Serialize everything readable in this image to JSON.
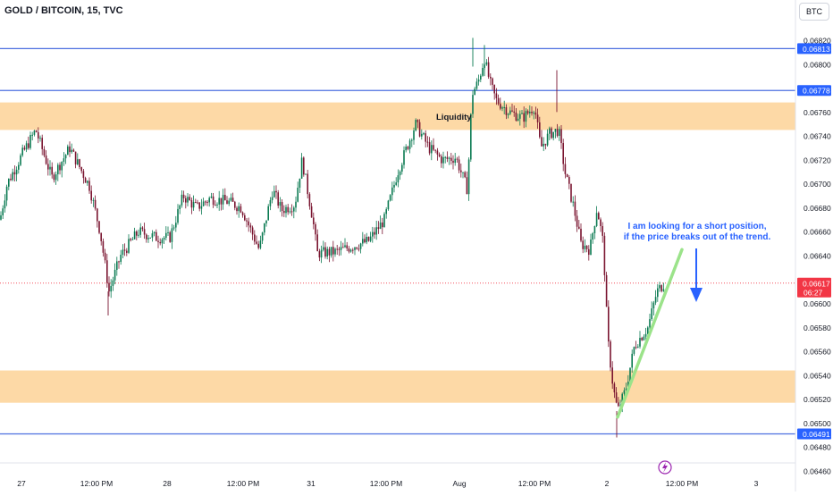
{
  "chart_data": {
    "type": "candlestick",
    "title": "GOLD / BITCOIN, 15, TVC",
    "currency": "BTC",
    "ylim": [
      0.06455,
      0.06848
    ],
    "x_ticks": [
      "27",
      "12:00 PM",
      "28",
      "12:00 PM",
      "31",
      "12:00 PM",
      "Aug",
      "12:00 PM",
      "2",
      "12:00 PM",
      "3"
    ],
    "y_ticks": [
      "0.06820",
      "0.06800",
      "0.06760",
      "0.06740",
      "0.06720",
      "0.06700",
      "0.06680",
      "0.06660",
      "0.06640",
      "0.06600",
      "0.06580",
      "0.06560",
      "0.06540",
      "0.06520",
      "0.06500",
      "0.06480",
      "0.06460"
    ],
    "current_price": {
      "value": "0.06617",
      "countdown": "06:27"
    },
    "horizontal_levels": [
      {
        "value": 0.06813,
        "label": "0.06813",
        "color": "#4c6fe0"
      },
      {
        "value": 0.06778,
        "label": "0.06778",
        "color": "#4c6fe0"
      },
      {
        "value": 0.06491,
        "label": "0.06491",
        "color": "#4c6fe0"
      }
    ],
    "zones": [
      {
        "name": "liquidity-zone",
        "top": 0.06768,
        "bottom": 0.06745,
        "color": "#fdd9a6"
      },
      {
        "name": "support-zone",
        "top": 0.06544,
        "bottom": 0.06517,
        "color": "#fdd9a6"
      }
    ],
    "anchors": [
      [
        0,
        0.0667
      ],
      [
        8,
        0.067
      ],
      [
        25,
        0.06725
      ],
      [
        40,
        0.06745
      ],
      [
        58,
        0.06705
      ],
      [
        78,
        0.0673
      ],
      [
        100,
        0.06698
      ],
      [
        112,
        0.0666
      ],
      [
        122,
        0.0661
      ],
      [
        135,
        0.0664
      ],
      [
        155,
        0.0666
      ],
      [
        175,
        0.06655
      ],
      [
        190,
        0.06655
      ],
      [
        205,
        0.0669
      ],
      [
        220,
        0.0668
      ],
      [
        235,
        0.06688
      ],
      [
        255,
        0.06685
      ],
      [
        270,
        0.0668
      ],
      [
        290,
        0.06645
      ],
      [
        305,
        0.06695
      ],
      [
        315,
        0.06678
      ],
      [
        330,
        0.06683
      ],
      [
        338,
        0.0672
      ],
      [
        350,
        0.0667
      ],
      [
        355,
        0.06642
      ],
      [
        375,
        0.06643
      ],
      [
        395,
        0.06648
      ],
      [
        412,
        0.06652
      ],
      [
        430,
        0.0667
      ],
      [
        445,
        0.0671
      ],
      [
        465,
        0.0675
      ],
      [
        480,
        0.0673
      ],
      [
        495,
        0.0672
      ],
      [
        510,
        0.06722
      ],
      [
        523,
        0.06695
      ],
      [
        528,
        0.06775
      ],
      [
        535,
        0.06785
      ],
      [
        542,
        0.06805
      ],
      [
        548,
        0.06785
      ],
      [
        555,
        0.0677
      ],
      [
        570,
        0.0676
      ],
      [
        585,
        0.06755
      ],
      [
        598,
        0.06765
      ],
      [
        605,
        0.0673
      ],
      [
        615,
        0.06742
      ],
      [
        625,
        0.06745
      ],
      [
        632,
        0.0671
      ],
      [
        642,
        0.0668
      ],
      [
        650,
        0.0665
      ],
      [
        660,
        0.06645
      ],
      [
        668,
        0.0668
      ],
      [
        675,
        0.0665
      ],
      [
        680,
        0.0657
      ],
      [
        686,
        0.0653
      ],
      [
        691,
        0.0651
      ],
      [
        700,
        0.06528
      ],
      [
        710,
        0.06565
      ],
      [
        725,
        0.0658
      ],
      [
        735,
        0.0661
      ],
      [
        743,
        0.06617
      ]
    ]
  },
  "annotations": {
    "liquidity_label": "Liquidity",
    "note_line1": "I am looking for a short position,",
    "note_line2": "if the price breaks out of the trend."
  },
  "colors": {
    "up": "#0b7a52",
    "down": "#7a1530",
    "level_line": "#4c6fe0",
    "zone": "#fdd9a6",
    "trendline": "#9be38a",
    "arrow": "#2962ff",
    "price_badge": "#f23645",
    "level_badge": "#2962ff",
    "note_text": "#2962ff"
  },
  "icons": {
    "event": "lightning-icon"
  }
}
